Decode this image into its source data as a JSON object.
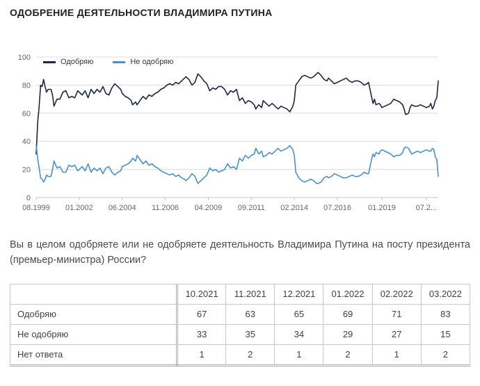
{
  "page": {
    "title": "ОДОБРЕНИЕ ДЕЯТЕЛЬНОСТИ ВЛАДИМИРА ПУТИНА",
    "question": "Вы в целом одобряете или не одобряете деятельность Владимира Путина на посту президента (премьер-министра) России?"
  },
  "chart_data": {
    "type": "line",
    "title": "Одобрение деятельности Владимира Путина",
    "xlabel": "",
    "ylabel": "",
    "grid": "horizontal",
    "legend_position": "top-left-inside",
    "ylim": [
      0,
      100
    ],
    "yticks": [
      0,
      20,
      40,
      60,
      80,
      100
    ],
    "xlim": [
      0,
      271
    ],
    "xticks": [
      {
        "pos": 0,
        "label": "08.1999"
      },
      {
        "pos": 29,
        "label": "01.2002"
      },
      {
        "pos": 58,
        "label": "06.2004"
      },
      {
        "pos": 87,
        "label": "11.2006"
      },
      {
        "pos": 116,
        "label": "04.2009"
      },
      {
        "pos": 145,
        "label": "09.2011"
      },
      {
        "pos": 174,
        "label": "02.2014"
      },
      {
        "pos": 203,
        "label": "07.2016"
      },
      {
        "pos": 233,
        "label": "01.2019"
      },
      {
        "pos": 263,
        "label": "07.2..."
      }
    ],
    "series": [
      {
        "name": "Одобряю",
        "color": "#1a2742",
        "points": [
          [
            0,
            31
          ],
          [
            1,
            53
          ],
          [
            2,
            65
          ],
          [
            3,
            80
          ],
          [
            4,
            79
          ],
          [
            5,
            84
          ],
          [
            6,
            79
          ],
          [
            7,
            75
          ],
          [
            8,
            77
          ],
          [
            10,
            77
          ],
          [
            11,
            73
          ],
          [
            12,
            65
          ],
          [
            14,
            70
          ],
          [
            16,
            70
          ],
          [
            18,
            75
          ],
          [
            20,
            76
          ],
          [
            22,
            71
          ],
          [
            24,
            72
          ],
          [
            26,
            71
          ],
          [
            28,
            76
          ],
          [
            29,
            75
          ],
          [
            31,
            73
          ],
          [
            33,
            76
          ],
          [
            35,
            71
          ],
          [
            37,
            77
          ],
          [
            39,
            74
          ],
          [
            41,
            77
          ],
          [
            43,
            75
          ],
          [
            45,
            79
          ],
          [
            47,
            74
          ],
          [
            49,
            73
          ],
          [
            51,
            78
          ],
          [
            53,
            81
          ],
          [
            55,
            79
          ],
          [
            57,
            77
          ],
          [
            58,
            74
          ],
          [
            60,
            72
          ],
          [
            62,
            71
          ],
          [
            64,
            69
          ],
          [
            65,
            66
          ],
          [
            67,
            68
          ],
          [
            68,
            66
          ],
          [
            70,
            69
          ],
          [
            72,
            72
          ],
          [
            74,
            70
          ],
          [
            76,
            73
          ],
          [
            78,
            72
          ],
          [
            80,
            74
          ],
          [
            82,
            75
          ],
          [
            84,
            77
          ],
          [
            86,
            78
          ],
          [
            88,
            80
          ],
          [
            90,
            81
          ],
          [
            92,
            80
          ],
          [
            94,
            82
          ],
          [
            96,
            81
          ],
          [
            98,
            83
          ],
          [
            100,
            85
          ],
          [
            101,
            86
          ],
          [
            103,
            84
          ],
          [
            105,
            80
          ],
          [
            107,
            82
          ],
          [
            109,
            88
          ],
          [
            111,
            86
          ],
          [
            113,
            83
          ],
          [
            115,
            81
          ],
          [
            117,
            76
          ],
          [
            119,
            78
          ],
          [
            121,
            77
          ],
          [
            123,
            79
          ],
          [
            125,
            79
          ],
          [
            127,
            77
          ],
          [
            129,
            73
          ],
          [
            131,
            76
          ],
          [
            133,
            75
          ],
          [
            135,
            77
          ],
          [
            137,
            69
          ],
          [
            139,
            71
          ],
          [
            141,
            67
          ],
          [
            143,
            69
          ],
          [
            145,
            68
          ],
          [
            147,
            66
          ],
          [
            148,
            63
          ],
          [
            150,
            66
          ],
          [
            152,
            64
          ],
          [
            153,
            69
          ],
          [
            155,
            67
          ],
          [
            157,
            65
          ],
          [
            159,
            67
          ],
          [
            161,
            65
          ],
          [
            163,
            63
          ],
          [
            165,
            65
          ],
          [
            167,
            64
          ],
          [
            169,
            63
          ],
          [
            171,
            61
          ],
          [
            173,
            65
          ],
          [
            174,
            69
          ],
          [
            175,
            80
          ],
          [
            177,
            83
          ],
          [
            179,
            86
          ],
          [
            181,
            87
          ],
          [
            183,
            86
          ],
          [
            185,
            85
          ],
          [
            187,
            86
          ],
          [
            189,
            88
          ],
          [
            190,
            89
          ],
          [
            192,
            87
          ],
          [
            194,
            84
          ],
          [
            196,
            83
          ],
          [
            197,
            85
          ],
          [
            199,
            83
          ],
          [
            201,
            81
          ],
          [
            203,
            82
          ],
          [
            205,
            83
          ],
          [
            207,
            84
          ],
          [
            209,
            85
          ],
          [
            211,
            83
          ],
          [
            213,
            82
          ],
          [
            215,
            83
          ],
          [
            217,
            83
          ],
          [
            219,
            82
          ],
          [
            221,
            80
          ],
          [
            223,
            81
          ],
          [
            224,
            82
          ],
          [
            226,
            72
          ],
          [
            227,
            67
          ],
          [
            228,
            70
          ],
          [
            229,
            66
          ],
          [
            231,
            67
          ],
          [
            232,
            66
          ],
          [
            233,
            64
          ],
          [
            235,
            65
          ],
          [
            237,
            66
          ],
          [
            239,
            67
          ],
          [
            241,
            70
          ],
          [
            243,
            69
          ],
          [
            245,
            68
          ],
          [
            247,
            66
          ],
          [
            248,
            63
          ],
          [
            249,
            59
          ],
          [
            251,
            60
          ],
          [
            252,
            64
          ],
          [
            253,
            66
          ],
          [
            255,
            65
          ],
          [
            257,
            65
          ],
          [
            259,
            66
          ],
          [
            261,
            65
          ],
          [
            263,
            64
          ],
          [
            265,
            65
          ],
          [
            266,
            67
          ],
          [
            267,
            63
          ],
          [
            268,
            65
          ],
          [
            269,
            69
          ],
          [
            270,
            71
          ],
          [
            271,
            83
          ]
        ]
      },
      {
        "name": "Не одобряю",
        "color": "#4a90c8",
        "points": [
          [
            0,
            37
          ],
          [
            1,
            28
          ],
          [
            2,
            21
          ],
          [
            3,
            14
          ],
          [
            4,
            13
          ],
          [
            5,
            11
          ],
          [
            6,
            13
          ],
          [
            7,
            16
          ],
          [
            8,
            15
          ],
          [
            10,
            15
          ],
          [
            11,
            20
          ],
          [
            12,
            26
          ],
          [
            14,
            21
          ],
          [
            16,
            22
          ],
          [
            18,
            18
          ],
          [
            20,
            18
          ],
          [
            22,
            23
          ],
          [
            24,
            22
          ],
          [
            26,
            23
          ],
          [
            28,
            19
          ],
          [
            29,
            20
          ],
          [
            31,
            22
          ],
          [
            33,
            19
          ],
          [
            35,
            24
          ],
          [
            37,
            18
          ],
          [
            39,
            21
          ],
          [
            41,
            19
          ],
          [
            43,
            21
          ],
          [
            45,
            17
          ],
          [
            47,
            21
          ],
          [
            49,
            22
          ],
          [
            51,
            18
          ],
          [
            53,
            16
          ],
          [
            55,
            18
          ],
          [
            57,
            19
          ],
          [
            58,
            22
          ],
          [
            60,
            23
          ],
          [
            62,
            24
          ],
          [
            64,
            26
          ],
          [
            65,
            28
          ],
          [
            67,
            26
          ],
          [
            68,
            30
          ],
          [
            70,
            27
          ],
          [
            72,
            24
          ],
          [
            74,
            26
          ],
          [
            76,
            23
          ],
          [
            78,
            24
          ],
          [
            80,
            22
          ],
          [
            82,
            21
          ],
          [
            84,
            19
          ],
          [
            86,
            18
          ],
          [
            88,
            17
          ],
          [
            90,
            16
          ],
          [
            92,
            17
          ],
          [
            94,
            15
          ],
          [
            96,
            16
          ],
          [
            98,
            14
          ],
          [
            100,
            13
          ],
          [
            101,
            12
          ],
          [
            103,
            14
          ],
          [
            105,
            17
          ],
          [
            107,
            15
          ],
          [
            109,
            10
          ],
          [
            111,
            12
          ],
          [
            113,
            14
          ],
          [
            115,
            16
          ],
          [
            117,
            21
          ],
          [
            119,
            19
          ],
          [
            121,
            20
          ],
          [
            123,
            18
          ],
          [
            125,
            19
          ],
          [
            127,
            20
          ],
          [
            129,
            24
          ],
          [
            131,
            21
          ],
          [
            133,
            22
          ],
          [
            135,
            20
          ],
          [
            137,
            28
          ],
          [
            139,
            26
          ],
          [
            141,
            30
          ],
          [
            143,
            28
          ],
          [
            145,
            30
          ],
          [
            147,
            31
          ],
          [
            148,
            35
          ],
          [
            150,
            31
          ],
          [
            152,
            33
          ],
          [
            153,
            29
          ],
          [
            155,
            30
          ],
          [
            157,
            32
          ],
          [
            159,
            31
          ],
          [
            161,
            33
          ],
          [
            163,
            35
          ],
          [
            165,
            33
          ],
          [
            167,
            34
          ],
          [
            169,
            35
          ],
          [
            171,
            37
          ],
          [
            173,
            34
          ],
          [
            174,
            30
          ],
          [
            175,
            18
          ],
          [
            177,
            14
          ],
          [
            179,
            12
          ],
          [
            181,
            11
          ],
          [
            183,
            12
          ],
          [
            185,
            13
          ],
          [
            187,
            12
          ],
          [
            189,
            10
          ],
          [
            190,
            10
          ],
          [
            192,
            11
          ],
          [
            194,
            14
          ],
          [
            196,
            15
          ],
          [
            197,
            14
          ],
          [
            199,
            15
          ],
          [
            201,
            17
          ],
          [
            203,
            16
          ],
          [
            205,
            15
          ],
          [
            207,
            14
          ],
          [
            209,
            14
          ],
          [
            211,
            15
          ],
          [
            213,
            16
          ],
          [
            215,
            15
          ],
          [
            217,
            15
          ],
          [
            219,
            16
          ],
          [
            221,
            18
          ],
          [
            223,
            17
          ],
          [
            224,
            17
          ],
          [
            226,
            27
          ],
          [
            227,
            31
          ],
          [
            228,
            29
          ],
          [
            229,
            32
          ],
          [
            231,
            31
          ],
          [
            232,
            33
          ],
          [
            233,
            34
          ],
          [
            235,
            33
          ],
          [
            237,
            32
          ],
          [
            239,
            31
          ],
          [
            241,
            29
          ],
          [
            243,
            30
          ],
          [
            245,
            30
          ],
          [
            247,
            32
          ],
          [
            248,
            35
          ],
          [
            249,
            36
          ],
          [
            251,
            35
          ],
          [
            252,
            33
          ],
          [
            253,
            31
          ],
          [
            255,
            32
          ],
          [
            257,
            33
          ],
          [
            259,
            32
          ],
          [
            261,
            33
          ],
          [
            263,
            34
          ],
          [
            265,
            33
          ],
          [
            266,
            33
          ],
          [
            267,
            35
          ],
          [
            268,
            34
          ],
          [
            269,
            29
          ],
          [
            270,
            27
          ],
          [
            271,
            15
          ]
        ]
      }
    ]
  },
  "table": {
    "columns": [
      "",
      "10.2021",
      "11.2021",
      "12.2021",
      "01.2022",
      "02.2022",
      "03.2022"
    ],
    "rows": [
      {
        "label": "Одобряю",
        "values": [
          67,
          63,
          65,
          69,
          71,
          83
        ]
      },
      {
        "label": "Не одобряю",
        "values": [
          33,
          35,
          34,
          29,
          27,
          15
        ]
      },
      {
        "label": "Нет ответа",
        "values": [
          1,
          2,
          1,
          2,
          1,
          2
        ]
      }
    ]
  }
}
